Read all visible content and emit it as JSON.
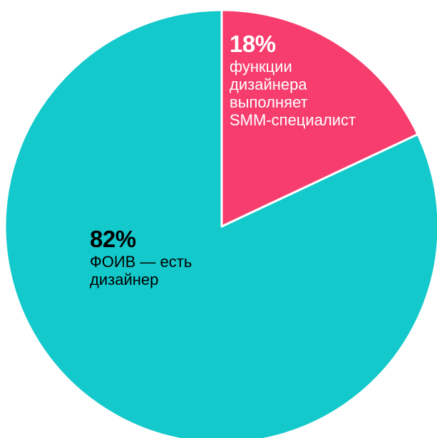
{
  "chart_data": {
    "type": "pie",
    "slices": [
      {
        "value": 18,
        "value_label": "18%",
        "label": "функции\nдизайнера\nвыполняет\nSMM-специалист",
        "color": "#f73d6d"
      },
      {
        "value": 82,
        "value_label": "82%",
        "label": "ФОИВ — есть\nдизайнер",
        "color": "#14c9cb"
      }
    ],
    "title": "",
    "legend": "none",
    "start_angle": "12 o'clock",
    "direction": "clockwise",
    "separator_color": "#ffffff"
  }
}
